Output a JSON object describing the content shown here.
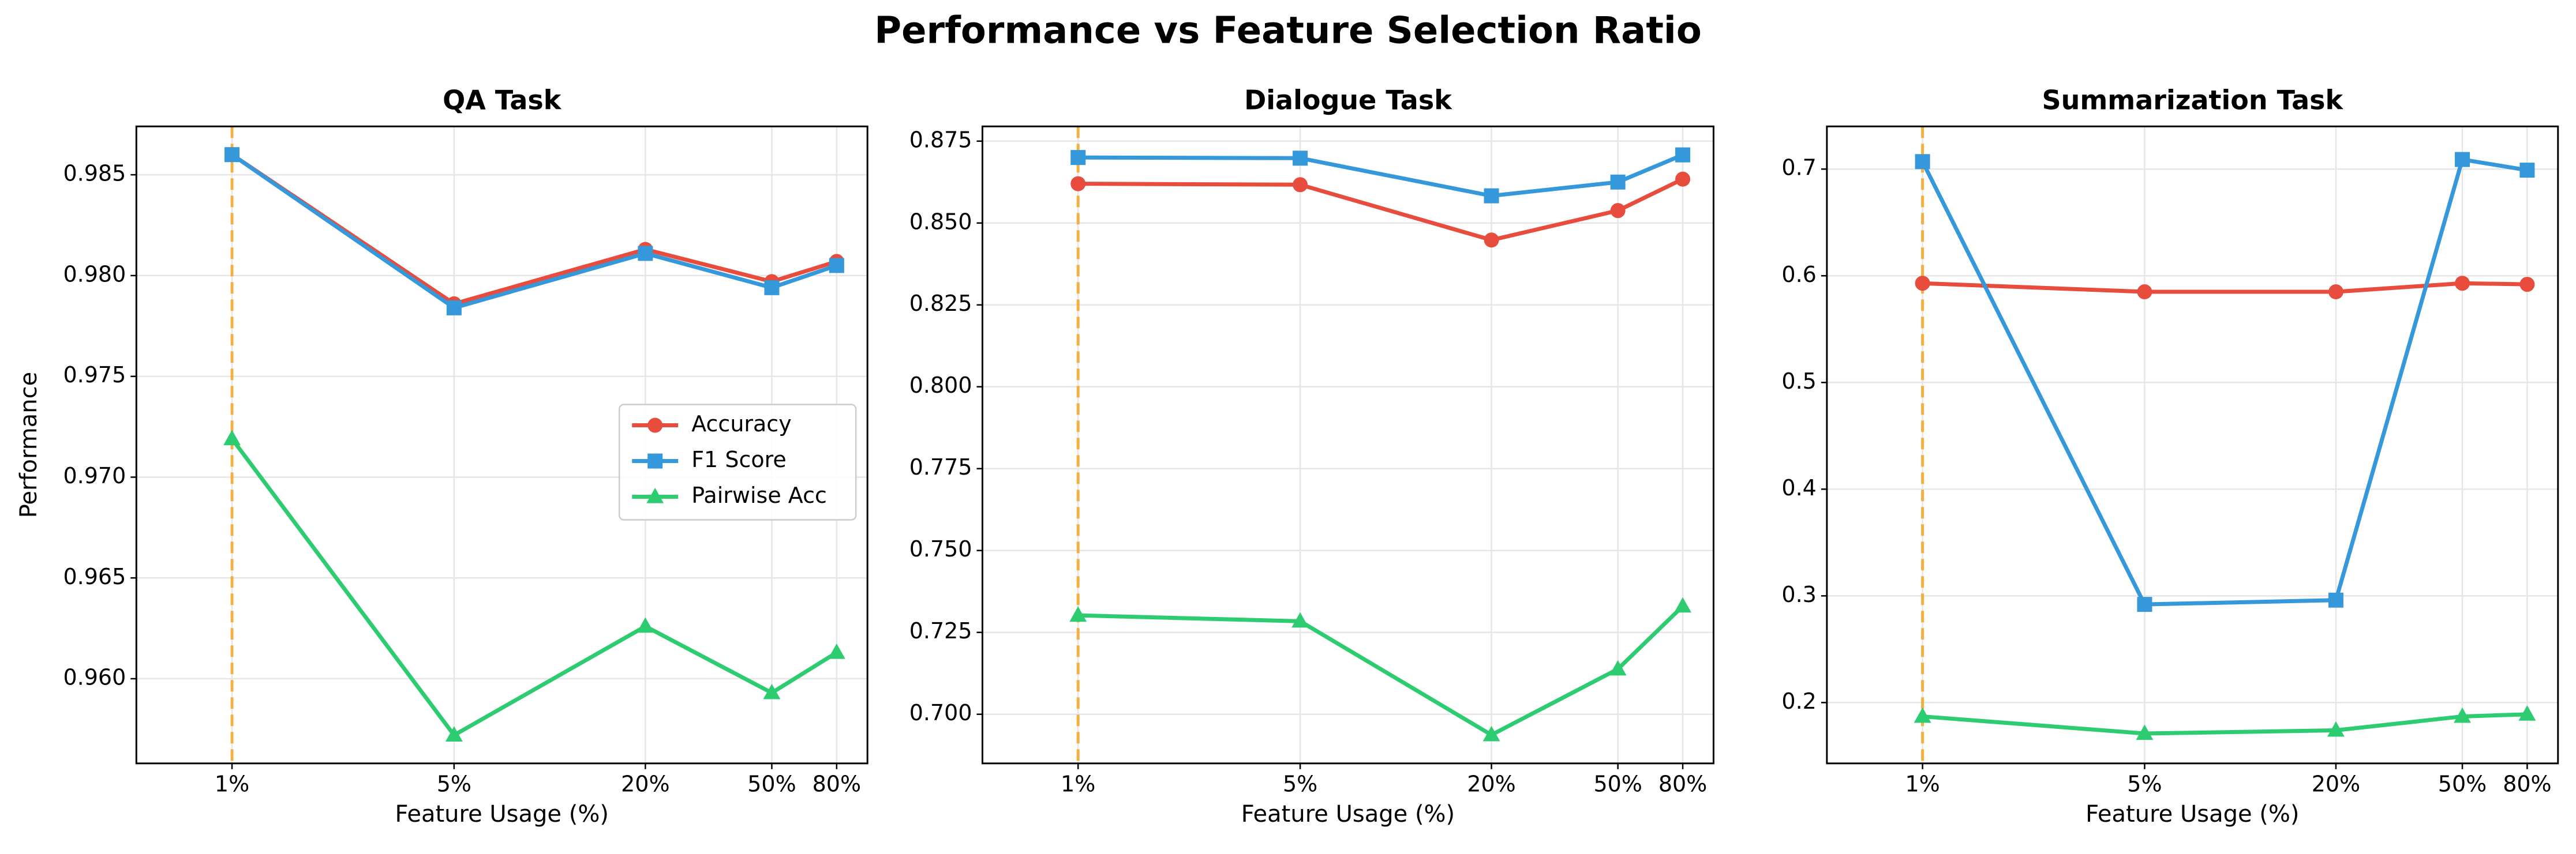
{
  "title": "Performance vs Feature Selection Ratio",
  "chart_data": [
    {
      "type": "line",
      "title": "QA Task",
      "xlabel": "Feature Usage (%)",
      "ylabel": "Performance",
      "x": [
        1,
        5,
        20,
        50,
        80
      ],
      "xscale": "log",
      "xlim": [
        0.5,
        100
      ],
      "xticks": [
        {
          "value": 1,
          "label": "1%"
        },
        {
          "value": 5,
          "label": "5%"
        },
        {
          "value": 20,
          "label": "20%"
        },
        {
          "value": 50,
          "label": "50%"
        },
        {
          "value": 80,
          "label": "80%"
        }
      ],
      "ylim": [
        0.9558,
        0.9874
      ],
      "yticks": [
        {
          "value": 0.96,
          "label": "0.960"
        },
        0.965,
        {
          "value": 0.97,
          "label": "0.970"
        },
        0.975,
        {
          "value": 0.98,
          "label": "0.980"
        },
        0.985
      ],
      "grid": true,
      "legend": "center right",
      "vline": {
        "x": 1,
        "color": "#f5a623"
      },
      "series": [
        {
          "name": "Accuracy",
          "color": "#e74c3c",
          "marker": "o",
          "values": [
            0.986,
            0.9786,
            0.9813,
            0.9797,
            0.9807
          ]
        },
        {
          "name": "F1 Score",
          "color": "#3498db",
          "marker": "s",
          "values": [
            0.986,
            0.9784,
            0.9811,
            0.9794,
            0.9805
          ]
        },
        {
          "name": "Pairwise Acc",
          "color": "#2ecc71",
          "marker": "^",
          "values": [
            0.9719,
            0.9572,
            0.9626,
            0.9593,
            0.9613
          ]
        }
      ]
    },
    {
      "type": "line",
      "title": "Dialogue Task",
      "xlabel": "Feature Usage (%)",
      "x": [
        1,
        5,
        20,
        50,
        80
      ],
      "xscale": "log",
      "xlim": [
        0.5,
        100
      ],
      "xticks": [
        {
          "value": 1,
          "label": "1%"
        },
        {
          "value": 5,
          "label": "5%"
        },
        {
          "value": 20,
          "label": "20%"
        },
        {
          "value": 50,
          "label": "50%"
        },
        {
          "value": 80,
          "label": "80%"
        }
      ],
      "ylim": [
        0.685,
        0.8795
      ],
      "yticks": [
        {
          "value": 0.7,
          "label": "0.700"
        },
        0.725,
        {
          "value": 0.75,
          "label": "0.750"
        },
        0.775,
        {
          "value": 0.8,
          "label": "0.800"
        },
        0.825,
        {
          "value": 0.85,
          "label": "0.850"
        },
        0.875
      ],
      "grid": true,
      "vline": {
        "x": 1,
        "color": "#f5a623"
      },
      "series": [
        {
          "name": "Accuracy",
          "color": "#e74c3c",
          "marker": "o",
          "values": [
            0.862,
            0.8617,
            0.8448,
            0.8538,
            0.8634
          ]
        },
        {
          "name": "F1 Score",
          "color": "#3498db",
          "marker": "s",
          "values": [
            0.87,
            0.8698,
            0.8583,
            0.8625,
            0.8708
          ]
        },
        {
          "name": "Pairwise Acc",
          "color": "#2ecc71",
          "marker": "^",
          "values": [
            0.7302,
            0.7284,
            0.6937,
            0.7138,
            0.733
          ]
        }
      ]
    },
    {
      "type": "line",
      "title": "Summarization Task",
      "xlabel": "Feature Usage (%)",
      "x": [
        1,
        5,
        20,
        50,
        80
      ],
      "xscale": "log",
      "xlim": [
        0.5,
        100
      ],
      "xticks": [
        {
          "value": 1,
          "label": "1%"
        },
        {
          "value": 5,
          "label": "5%"
        },
        {
          "value": 20,
          "label": "20%"
        },
        {
          "value": 50,
          "label": "50%"
        },
        {
          "value": 80,
          "label": "80%"
        }
      ],
      "ylim": [
        0.143,
        0.74
      ],
      "yticks": [
        0.2,
        0.3,
        0.4,
        0.5,
        0.6,
        0.7
      ],
      "grid": true,
      "vline": {
        "x": 1,
        "color": "#f5a623"
      },
      "series": [
        {
          "name": "Accuracy",
          "color": "#e74c3c",
          "marker": "o",
          "values": [
            0.593,
            0.585,
            0.585,
            0.593,
            0.592
          ]
        },
        {
          "name": "F1 Score",
          "color": "#3498db",
          "marker": "s",
          "values": [
            0.707,
            0.292,
            0.296,
            0.709,
            0.699
          ]
        },
        {
          "name": "Pairwise Acc",
          "color": "#2ecc71",
          "marker": "^",
          "values": [
            0.187,
            0.171,
            0.174,
            0.187,
            0.189
          ]
        }
      ]
    }
  ]
}
